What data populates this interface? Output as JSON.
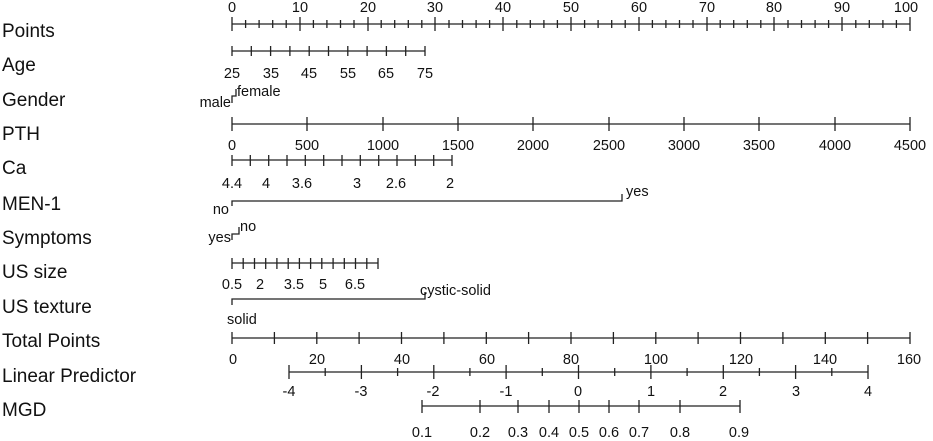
{
  "chart_data": {
    "type": "nomogram",
    "title": "",
    "scales": [
      {
        "id": "points",
        "label": "Points",
        "min": 0,
        "max": 100,
        "minor_step": 2,
        "tick_labels": [
          "0",
          "10",
          "20",
          "30",
          "40",
          "50",
          "60",
          "70",
          "80",
          "90",
          "100"
        ],
        "tick_values": [
          0,
          10,
          20,
          30,
          40,
          50,
          60,
          70,
          80,
          90,
          100
        ]
      },
      {
        "id": "age",
        "label": "Age",
        "points_range": [
          0,
          28.5
        ],
        "tick_labels": [
          "25",
          "35",
          "45",
          "55",
          "65",
          "75"
        ]
      },
      {
        "id": "gender",
        "label": "Gender",
        "points_range": [
          0,
          0.6
        ],
        "tick_labels": [
          "male",
          "female"
        ]
      },
      {
        "id": "pth",
        "label": "PTH",
        "min": 0,
        "max": 4500,
        "points_range": [
          0,
          100
        ],
        "tick_labels": [
          "0",
          "500",
          "1000",
          "1500",
          "2000",
          "2500",
          "3000",
          "3500",
          "4000",
          "4500"
        ],
        "tick_values": [
          0,
          500,
          1000,
          1500,
          2000,
          2500,
          3000,
          3500,
          4000,
          4500
        ]
      },
      {
        "id": "ca",
        "label": "Ca",
        "points_range": [
          0,
          32.5
        ],
        "tick_labels": [
          "4.4",
          "4",
          "3.6",
          "3",
          "2.6",
          "2"
        ]
      },
      {
        "id": "men1",
        "label": "MEN-1",
        "points_range": [
          0,
          57.5
        ],
        "tick_labels": [
          "no",
          "yes"
        ]
      },
      {
        "id": "symptoms",
        "label": "Symptoms",
        "points_range": [
          0,
          1.2
        ],
        "tick_labels": [
          "yes",
          "no"
        ]
      },
      {
        "id": "us_size",
        "label": "US size",
        "points_range": [
          0,
          21.5
        ],
        "tick_labels": [
          "0.5",
          "2",
          "3.5",
          "5",
          "6.5"
        ]
      },
      {
        "id": "us_texture",
        "label": "US texture",
        "points_range": [
          0,
          28.5
        ],
        "tick_labels": [
          "solid",
          "cystic-solid"
        ]
      },
      {
        "id": "total_points",
        "label": "Total Points",
        "min": 0,
        "max": 160,
        "tick_labels": [
          "0",
          "20",
          "40",
          "60",
          "80",
          "100",
          "120",
          "140",
          "160"
        ],
        "tick_values": [
          0,
          20,
          40,
          60,
          80,
          100,
          120,
          140,
          160
        ]
      },
      {
        "id": "linear_predictor",
        "label": "Linear Predictor",
        "min": -4,
        "max": 4,
        "tick_labels": [
          "-4",
          "-3",
          "-2",
          "-1",
          "0",
          "1",
          "2",
          "3",
          "4"
        ],
        "tick_values": [
          -4,
          -3,
          -2,
          -1,
          0,
          1,
          2,
          3,
          4
        ]
      },
      {
        "id": "mgd",
        "label": "MGD",
        "tick_labels": [
          "0.1",
          "0.2",
          "0.3",
          "0.4",
          "0.5",
          "0.6",
          "0.7",
          "0.8",
          "0.9"
        ],
        "tick_values": [
          0.1,
          0.2,
          0.3,
          0.4,
          0.5,
          0.6,
          0.7,
          0.8,
          0.9
        ]
      }
    ]
  }
}
